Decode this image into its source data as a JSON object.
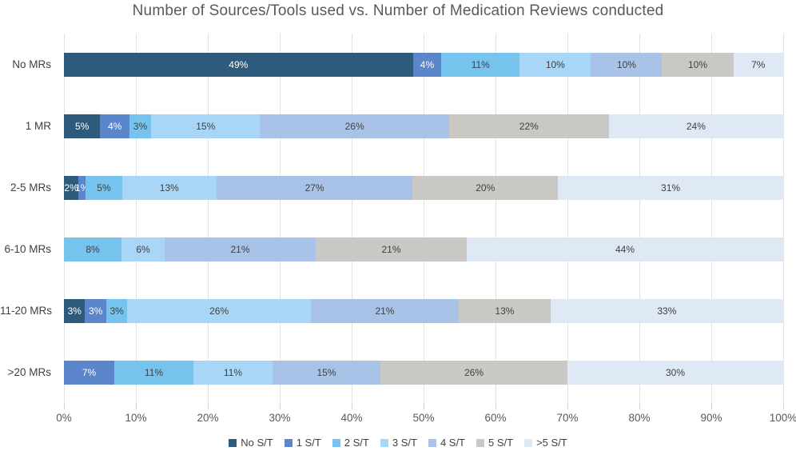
{
  "title": "Number of Sources/Tools used vs. Number of Medication Reviews conducted",
  "colors": {
    "background": "#ffffff",
    "title_text": "#595959",
    "axis_text": "#595959",
    "category_text": "#404040",
    "gridline": "#e2e2e2",
    "tick_mark": "#cfcfcf"
  },
  "chart_data": {
    "type": "bar",
    "orientation": "horizontal",
    "stacked": true,
    "title": "Number of Sources/Tools used vs. Number of Medication Reviews conducted",
    "xlabel": "",
    "ylabel": "",
    "xlim": [
      0,
      100
    ],
    "grid": true,
    "legend_position": "bottom",
    "x_ticks": [
      "0%",
      "10%",
      "20%",
      "30%",
      "40%",
      "50%",
      "60%",
      "70%",
      "80%",
      "90%",
      "100%"
    ],
    "categories": [
      "No MRs",
      "1 MR",
      "2-5 MRs",
      "6-10 MRs",
      "11-20 MRs",
      ">20 MRs"
    ],
    "series": [
      {
        "name": "No S/T",
        "color": "#2e5b7c",
        "label_color": "#ffffff",
        "values": [
          49,
          5,
          2,
          0,
          3,
          0
        ]
      },
      {
        "name": "1 S/T",
        "color": "#5b86cb",
        "label_color": "#ffffff",
        "values": [
          4,
          4,
          1,
          0,
          3,
          7
        ]
      },
      {
        "name": "2 S/T",
        "color": "#76c3ed",
        "label_color": "#404040",
        "values": [
          11,
          3,
          5,
          8,
          3,
          11
        ]
      },
      {
        "name": "3 S/T",
        "color": "#a8d6f6",
        "label_color": "#404040",
        "values": [
          10,
          15,
          13,
          6,
          26,
          11
        ]
      },
      {
        "name": "4 S/T",
        "color": "#a9c2e8",
        "label_color": "#404040",
        "values": [
          10,
          26,
          27,
          21,
          21,
          15
        ]
      },
      {
        "name": "5 S/T",
        "color": "#c9c8c5",
        "label_color": "#404040",
        "values": [
          10,
          22,
          20,
          21,
          13,
          26
        ]
      },
      {
        "name": ">5 S/T",
        "color": "#dfe8f5",
        "label_color": "#404040",
        "values": [
          7,
          24,
          31,
          44,
          33,
          30
        ]
      }
    ],
    "value_suffix": "%"
  }
}
